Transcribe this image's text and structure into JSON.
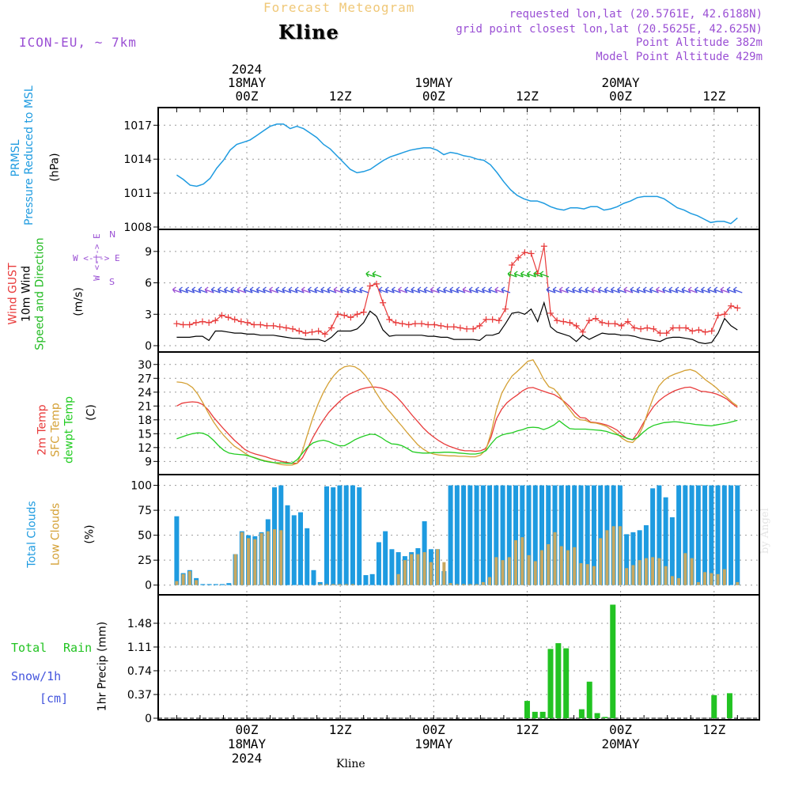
{
  "header": {
    "title": "Forecast Meteogram",
    "location": "Kline",
    "model": "ICON-EU, ~ 7km",
    "requested": "requested lon,lat (20.5761E, 42.6188N)",
    "gridpoint": "grid point closest lon,lat (20.5625E, 42.625N)",
    "point_alt": "Point Altitude 382m",
    "model_alt": "Model Point Altitude 429m"
  },
  "top_axis": [
    {
      "lines": [
        "2024",
        "18MAY",
        "00Z"
      ]
    },
    {
      "lines": [
        "12Z"
      ]
    },
    {
      "lines": [
        "19MAY",
        "00Z"
      ]
    },
    {
      "lines": [
        "12Z"
      ]
    },
    {
      "lines": [
        "20MAY",
        "00Z"
      ]
    },
    {
      "lines": [
        "12Z"
      ]
    }
  ],
  "bottom_axis": [
    {
      "lines": [
        "00Z",
        "18MAY",
        "2024"
      ]
    },
    {
      "lines": [
        "12Z"
      ]
    },
    {
      "lines": [
        "00Z",
        "19MAY"
      ]
    },
    {
      "lines": [
        "12Z"
      ]
    },
    {
      "lines": [
        "00Z",
        "20MAY"
      ]
    },
    {
      "lines": [
        "12Z"
      ]
    }
  ],
  "footer": "Kline",
  "watermark": "by Angel",
  "colors": {
    "pressure": "#1e9be0",
    "gust": "#e83a3a",
    "wind": "#000000",
    "dir": "#22bb22",
    "t2m": "#e83a3a",
    "sfc": "#d4a034",
    "dew": "#22cc22",
    "total_clouds": "#1e9be0",
    "low_clouds": "#c8a860",
    "rain": "#22c322",
    "snow": "#4455dd",
    "purple": "#9a4fd4",
    "title": "#f0c878"
  },
  "chart_data": [
    {
      "type": "line",
      "name": "pressure",
      "label_lines": [
        "PRMSL",
        "Pressure Reduced to MSL"
      ],
      "unit": "(hPa)",
      "x_hours_start": -9,
      "x_hours_step": 1,
      "ylim": [
        1008,
        1018
      ],
      "yticks": [
        1008,
        1011,
        1014,
        1017
      ],
      "values": [
        1012.6,
        1012.2,
        1011.7,
        1011.6,
        1011.8,
        1012.3,
        1013.2,
        1013.9,
        1014.8,
        1015.3,
        1015.5,
        1015.7,
        1016.1,
        1016.5,
        1016.9,
        1017.1,
        1017.1,
        1016.7,
        1016.9,
        1016.7,
        1016.3,
        1015.9,
        1015.3,
        1014.9,
        1014.3,
        1013.7,
        1013.1,
        1012.8,
        1012.9,
        1013.1,
        1013.5,
        1013.9,
        1014.2,
        1014.4,
        1014.6,
        1014.8,
        1014.9,
        1015,
        1015,
        1014.8,
        1014.4,
        1014.6,
        1014.5,
        1014.3,
        1014.2,
        1014,
        1013.9,
        1013.5,
        1012.8,
        1012,
        1011.3,
        1010.8,
        1010.5,
        1010.3,
        1010.3,
        1010.1,
        1009.8,
        1009.6,
        1009.5,
        1009.7,
        1009.7,
        1009.6,
        1009.8,
        1009.8,
        1009.5,
        1009.6,
        1009.8,
        1010.1,
        1010.3,
        1010.6,
        1010.7,
        1010.7,
        1010.7,
        1010.5,
        1010.1,
        1009.7,
        1009.5,
        1009.2,
        1009,
        1008.7,
        1008.4,
        1008.5,
        1008.5,
        1008.3,
        1008.8
      ]
    },
    {
      "type": "line",
      "name": "wind",
      "label_lines": [
        "Wind GUST",
        "10m Wind",
        "Speed and Direction"
      ],
      "unit": "(m/s)",
      "compass": [
        "N",
        "W <-|-> E",
        "S"
      ],
      "x_hours_start": -9,
      "x_hours_step": 1,
      "ylim": [
        0,
        10.5
      ],
      "yticks": [
        0,
        3,
        6,
        9
      ],
      "gust": [
        2.1,
        2,
        2,
        2.2,
        2.3,
        2.2,
        2.4,
        2.9,
        2.7,
        2.5,
        2.3,
        2.2,
        2,
        2,
        1.9,
        1.9,
        1.8,
        1.7,
        1.6,
        1.4,
        1.2,
        1.3,
        1.4,
        1.1,
        1.7,
        3,
        2.9,
        2.7,
        3,
        3.2,
        5.7,
        5.9,
        4.1,
        2.5,
        2.2,
        2.1,
        2,
        2.1,
        2.1,
        2,
        2,
        1.9,
        1.8,
        1.8,
        1.7,
        1.6,
        1.6,
        1.9,
        2.5,
        2.5,
        2.4,
        3.5,
        7.7,
        8.4,
        8.9,
        8.8,
        6.9,
        9.5,
        3.1,
        2.4,
        2.3,
        2.2,
        1.9,
        1.3,
        2.4,
        2.6,
        2.2,
        2.1,
        2.1,
        1.9,
        2.3,
        1.7,
        1.6,
        1.7,
        1.6,
        1.2,
        1.2,
        1.7,
        1.7,
        1.7,
        1.4,
        1.5,
        1.3,
        1.4,
        2.9,
        3,
        3.8,
        3.6
      ],
      "speed": [
        0.8,
        0.8,
        0.8,
        0.9,
        0.9,
        0.5,
        1.4,
        1.4,
        1.3,
        1.2,
        1.2,
        1.1,
        1.1,
        1,
        1,
        1,
        0.9,
        0.8,
        0.7,
        0.7,
        0.6,
        0.6,
        0.6,
        0.4,
        0.8,
        1.4,
        1.4,
        1.4,
        1.6,
        2.2,
        3.3,
        2.8,
        1.5,
        0.9,
        1,
        1,
        1,
        1,
        1,
        0.9,
        0.9,
        0.8,
        0.8,
        0.6,
        0.6,
        0.6,
        0.6,
        0.5,
        1,
        1,
        1.2,
        2.1,
        3.1,
        3.2,
        3,
        3.5,
        2.3,
        4.1,
        1.8,
        1.3,
        1.1,
        0.9,
        0.4,
        1,
        0.6,
        0.9,
        1.2,
        1.1,
        1.1,
        1,
        1,
        0.9,
        0.7,
        0.6,
        0.5,
        0.4,
        0.7,
        0.8,
        0.8,
        0.7,
        0.6,
        0.3,
        0.2,
        0.3,
        1.2,
        2.6,
        1.9,
        1.5
      ]
    },
    {
      "type": "line",
      "name": "temperature",
      "label_lines": [
        "2m Temp",
        "SFC Temp",
        "dewpt Temp"
      ],
      "unit": "(C)",
      "x_hours_start": -9,
      "x_hours_step": 1,
      "ylim": [
        7,
        31.5
      ],
      "yticks": [
        9,
        12,
        15,
        18,
        21,
        24,
        27,
        30
      ],
      "t2m": [
        21,
        21.6,
        21.8,
        21.9,
        21.8,
        21.3,
        20.2,
        18.6,
        17.3,
        16,
        14.8,
        13.6,
        12.6,
        11.6,
        11,
        10.6,
        10.3,
        10,
        9.6,
        9.3,
        9,
        8.8,
        8.6,
        8.6,
        9.8,
        11.9,
        14.2,
        16.2,
        18,
        19.6,
        20.8,
        21.9,
        22.9,
        23.6,
        24.1,
        24.6,
        24.9,
        25.1,
        25.1,
        24.9,
        24.5,
        23.9,
        22.9,
        21.7,
        20.3,
        18.9,
        17.6,
        16.3,
        15.2,
        14.3,
        13.5,
        12.8,
        12.3,
        11.9,
        11.5,
        11.3,
        11.3,
        11.2,
        11.3,
        11.8,
        14.3,
        18.2,
        20.3,
        21.7,
        22.6,
        23.4,
        24.3,
        24.9,
        25,
        24.6,
        24.2,
        23.8,
        23.5,
        22.8,
        21.9,
        20.9,
        19.6,
        18.5,
        18.4,
        17.5,
        17.4,
        17.2,
        16.9,
        16.4,
        15.8,
        14.8,
        13.9,
        13.7,
        15.2,
        17.2,
        19.2,
        20.9,
        22.1,
        23,
        23.7,
        24.3,
        24.7,
        25,
        25.1,
        24.7,
        24.2,
        24.1,
        23.9,
        23.6,
        23.1,
        22.5,
        21.5,
        20.7
      ],
      "sfc": [
        26.2,
        26.1,
        25.8,
        25,
        23.6,
        21.7,
        19.6,
        17.6,
        16,
        14.6,
        13.4,
        12.3,
        11.6,
        10.8,
        10.1,
        9.8,
        9.4,
        9.1,
        8.9,
        8.6,
        8.3,
        8.2,
        8.2,
        8.6,
        11.3,
        15,
        18.5,
        21.5,
        24,
        26,
        27.6,
        28.8,
        29.5,
        29.7,
        29.5,
        28.8,
        27.6,
        26,
        24,
        22.2,
        20.6,
        19.3,
        17.9,
        16.6,
        15.2,
        13.9,
        12.6,
        11.7,
        11,
        10.6,
        10.4,
        10.3,
        10.2,
        10.2,
        10.1,
        10.1,
        10,
        10,
        10.4,
        11.5,
        15.2,
        20.2,
        23.7,
        25.8,
        27.5,
        28.5,
        29.6,
        30.7,
        31,
        29.1,
        26.8,
        25.2,
        24.7,
        23.4,
        21.6,
        20.2,
        18.7,
        18,
        17.9,
        17.4,
        17.3,
        17,
        16.6,
        15.8,
        15,
        14,
        13.3,
        13.1,
        14.3,
        16.6,
        20,
        23,
        25.3,
        26.6,
        27.4,
        27.9,
        28.3,
        28.7,
        28.9,
        28.5,
        27.6,
        26.6,
        25.8,
        24.9,
        23.8,
        22.9,
        21.8,
        21
      ],
      "dew": [
        13.9,
        14.3,
        14.7,
        15,
        15.2,
        15.1,
        14.6,
        13.6,
        12.4,
        11.4,
        10.8,
        10.6,
        10.5,
        10.4,
        10.1,
        9.7,
        9.3,
        9,
        8.8,
        8.7,
        8.7,
        8.6,
        8.6,
        9.4,
        10.8,
        12.1,
        13,
        13.4,
        13.6,
        13.3,
        12.8,
        12.4,
        12.4,
        13,
        13.7,
        14.2,
        14.6,
        14.9,
        14.8,
        14.2,
        13.4,
        12.8,
        12.7,
        12.4,
        11.8,
        11.1,
        10.9,
        10.8,
        10.8,
        10.9,
        10.9,
        11,
        11,
        10.9,
        10.8,
        10.7,
        10.6,
        10.6,
        10.8,
        11.3,
        12.8,
        14.1,
        14.7,
        15,
        15.2,
        15.6,
        15.9,
        16.3,
        16.4,
        16.3,
        15.9,
        16.3,
        16.9,
        17.8,
        16.9,
        16.1,
        16,
        16,
        16,
        15.9,
        15.8,
        15.7,
        15.5,
        15.1,
        14.8,
        14.4,
        14,
        13.7,
        14.2,
        15.3,
        16.2,
        16.8,
        17.1,
        17.4,
        17.5,
        17.6,
        17.5,
        17.3,
        17.2,
        17,
        16.9,
        16.8,
        16.7,
        16.9,
        17.1,
        17.3,
        17.6,
        17.9
      ]
    },
    {
      "type": "bar",
      "name": "clouds",
      "label_lines": [
        "Total Clouds",
        "Low Clouds"
      ],
      "unit": "(%)",
      "x_hours_start": -9,
      "x_hours_step": 1,
      "ylim": [
        -5,
        106
      ],
      "yticks": [
        0,
        25,
        50,
        75,
        100
      ],
      "total": [
        69,
        12,
        15,
        7,
        1,
        1,
        1,
        1,
        2,
        31,
        54,
        50,
        49,
        53,
        66,
        98,
        100,
        80,
        70,
        73,
        57,
        15,
        3,
        99,
        98,
        100,
        100,
        100,
        98,
        10,
        11,
        43,
        54,
        36,
        33,
        29,
        33,
        37,
        64,
        36,
        36,
        14,
        100,
        100,
        100,
        100,
        100,
        100,
        100,
        100,
        100,
        100,
        100,
        100,
        100,
        100,
        100,
        100,
        100,
        100,
        100,
        100,
        100,
        100,
        100,
        100,
        100,
        100,
        100,
        51,
        53,
        55,
        60,
        97,
        100,
        88,
        68,
        100,
        100,
        100,
        100,
        100,
        100,
        100,
        100,
        100,
        100
      ],
      "low": [
        4,
        11,
        14,
        5,
        0,
        0,
        0,
        0,
        0,
        31,
        53,
        47,
        46,
        52,
        54,
        56,
        55,
        0,
        0,
        0,
        0,
        0,
        1,
        1,
        1,
        1,
        1,
        1,
        0,
        0,
        0,
        0,
        0,
        0,
        11,
        25,
        31,
        31,
        33,
        23,
        36,
        23,
        2,
        1,
        1,
        1,
        1,
        3,
        8,
        28,
        25,
        28,
        45,
        48,
        30,
        24,
        35,
        41,
        53,
        39,
        35,
        38,
        22,
        21,
        19,
        47,
        55,
        59,
        59,
        17,
        20,
        25,
        27,
        28,
        27,
        19,
        9,
        7,
        32,
        27,
        3,
        13,
        12,
        11,
        16,
        0,
        3
      ]
    },
    {
      "type": "bar",
      "name": "precip",
      "label_lines": [
        "Total",
        "Rain",
        "Snow/1h",
        "[cm]"
      ],
      "unit": "1hr Precip (mm)",
      "x_hours_start": 0,
      "x_hours_step": 1,
      "ylim": [
        0,
        1.8
      ],
      "yticks": [
        0,
        0.37,
        0.74,
        1.11,
        1.48
      ],
      "ytick_labels": [
        "0",
        "0.37",
        "0.74",
        "1.11",
        "1.48"
      ],
      "rain": [
        [
          36,
          0.27
        ],
        [
          37,
          0.1
        ],
        [
          38,
          0.1
        ],
        [
          39,
          1.08
        ],
        [
          40,
          1.17
        ],
        [
          41,
          1.09
        ],
        [
          43,
          0.14
        ],
        [
          44,
          0.57
        ],
        [
          45,
          0.08
        ],
        [
          46,
          0.02
        ],
        [
          47,
          1.77
        ],
        [
          60,
          0.36
        ],
        [
          62,
          0.39
        ]
      ]
    }
  ]
}
